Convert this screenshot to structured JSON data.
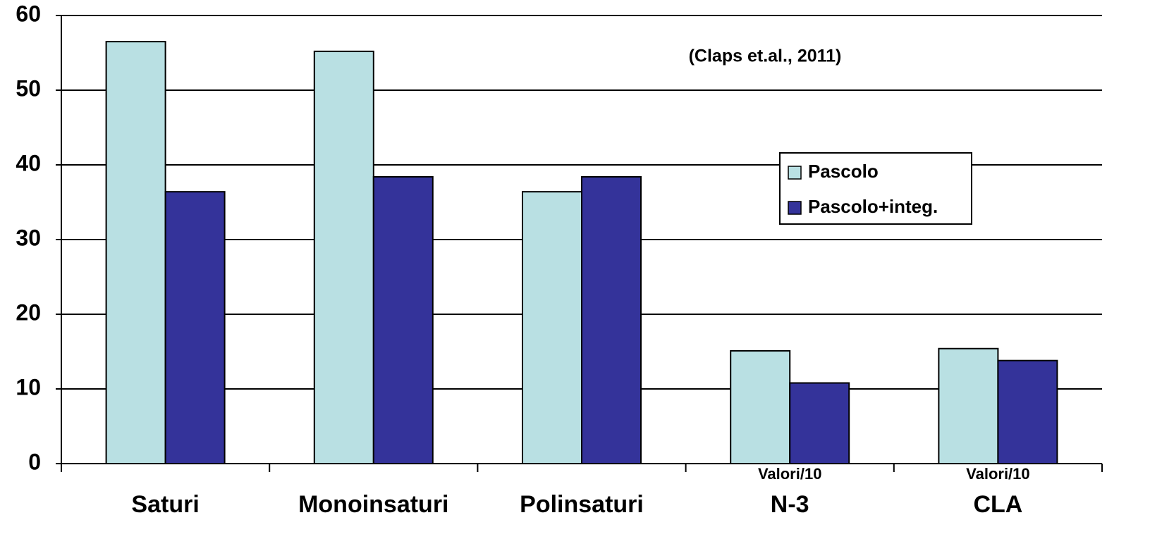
{
  "chart_data": {
    "type": "bar",
    "annotation": "(Claps et.al., 2011)",
    "categories": [
      "Saturi",
      "Monoinsaturi",
      "Polinsaturi",
      "N-3",
      "CLA"
    ],
    "category_notes": [
      null,
      null,
      null,
      "Valori/10",
      "Valori/10"
    ],
    "series": [
      {
        "name": "Pascolo",
        "color": "#b9e0e3",
        "values": [
          56.5,
          55.2,
          36.4,
          15.1,
          15.4
        ]
      },
      {
        "name": "Pascolo+integ.",
        "color": "#34339a",
        "values": [
          36.4,
          38.4,
          38.4,
          10.8,
          13.8
        ]
      }
    ],
    "ylim": [
      0,
      60
    ],
    "yticks": [
      0,
      10,
      20,
      30,
      40,
      50,
      60
    ],
    "grid": true,
    "legend": "center right"
  }
}
